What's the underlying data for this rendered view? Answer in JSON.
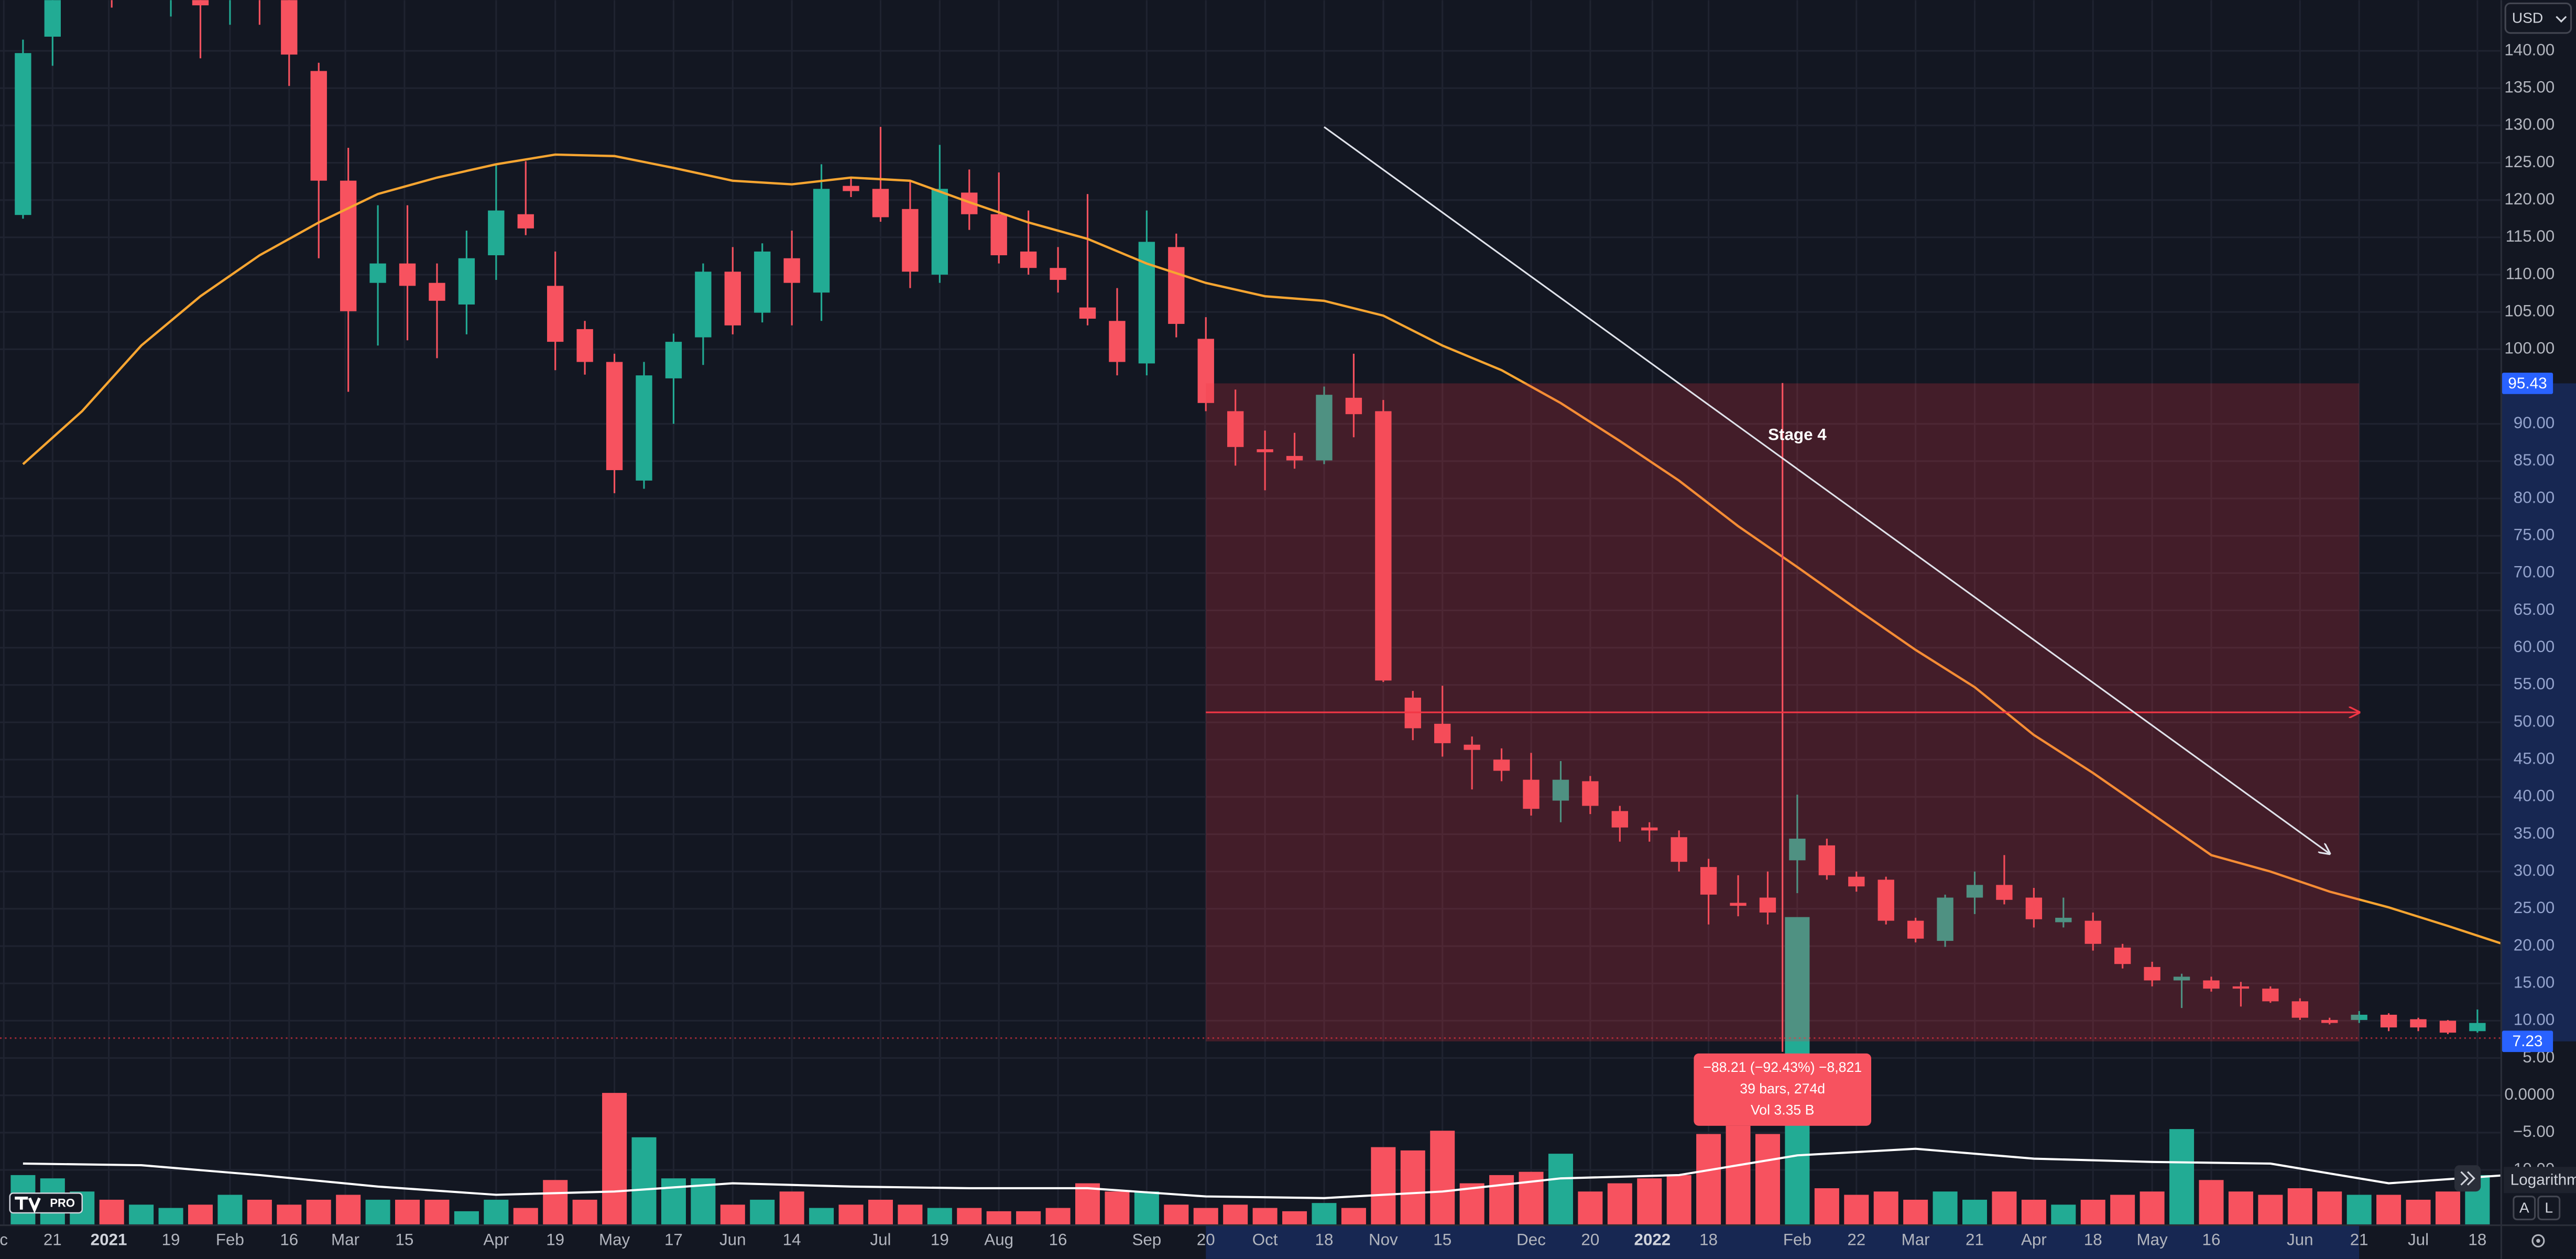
{
  "ui": {
    "currency": "USD",
    "log_button": "Logarithm",
    "auto_button": "A",
    "log_short": "L",
    "logo_badge": "PRO",
    "stage_label": "Stage 4",
    "measure": {
      "change": "−88.21 (−92.43%) −8,821",
      "bars": "39 bars, 274d",
      "volume": "Vol 3.35 B"
    }
  },
  "chart_data": {
    "type": "candlestick",
    "up_color": "#22ab94",
    "down_color": "#f7525f",
    "open": [
      118,
      141.9,
      149,
      150,
      148.5,
      148,
      150,
      147,
      149,
      148,
      137.3,
      122.6,
      108.9,
      111.5,
      108.9,
      106,
      112.6,
      118.1,
      108.5,
      102.7,
      98.3,
      82.4,
      96.1,
      101.6,
      110.4,
      104.9,
      112.2,
      107.6,
      121.9,
      121.5,
      118.8,
      110,
      121,
      118.1,
      113.1,
      110.9,
      105.6,
      103.8,
      98.1,
      113.7,
      101.4,
      91.7,
      86.6,
      85.7,
      85.1,
      93.5,
      91.7,
      53.3,
      49.8,
      47,
      45,
      42.3,
      39.5,
      42.1,
      38.1,
      35.9,
      34.6,
      30.6,
      25.8,
      26.5,
      31.5,
      33.5,
      29.3,
      28.9,
      23.4,
      20.7,
      26.5,
      28.2,
      26.5,
      23.2,
      23.4,
      19.8,
      17.2,
      15.4,
      15.4,
      14.6,
      14.3,
      12.6,
      10.1,
      10.1,
      10.8,
      10.2,
      10,
      8.6
    ],
    "high": [
      141.5,
      150,
      152,
      153,
      151,
      152,
      152,
      150,
      151,
      150,
      138.4,
      127,
      119.3,
      119.3,
      111.5,
      115.9,
      124.8,
      125.2,
      113.1,
      103.8,
      99.4,
      98.3,
      102.1,
      111.5,
      113.7,
      114.2,
      115.9,
      124.8,
      123,
      129.8,
      122.6,
      127.4,
      124.1,
      123.7,
      118.6,
      113.7,
      120.8,
      108.2,
      118.6,
      115.5,
      104.3,
      94.6,
      89.1,
      88.8,
      95,
      99.4,
      93.2,
      54.2,
      54.9,
      48.1,
      46.5,
      45.9,
      44.8,
      42.8,
      38.8,
      36.6,
      35.5,
      31.7,
      29.5,
      30,
      40.3,
      34.4,
      30,
      29.3,
      23.8,
      26.9,
      30,
      32.2,
      27.8,
      26.5,
      24.5,
      20.3,
      17.9,
      16.3,
      15.9,
      15.2,
      14.6,
      13,
      10.4,
      11.3,
      11,
      10.4,
      10.1,
      11.5
    ],
    "low": [
      117.5,
      138,
      147,
      145.8,
      147,
      144.6,
      139,
      143.5,
      143.5,
      135.3,
      112.2,
      94.3,
      100.5,
      101.2,
      98.8,
      102,
      109.3,
      115.3,
      97.2,
      96.6,
      80.7,
      81.3,
      90,
      97.9,
      102,
      103.6,
      103.2,
      103.8,
      120.4,
      117.1,
      108.2,
      108.9,
      116,
      111.5,
      110,
      107.6,
      103.2,
      96.5,
      96.5,
      101.6,
      91.7,
      84.4,
      81.1,
      84,
      84.6,
      88.2,
      55.4,
      47.6,
      45.4,
      41,
      42.1,
      37.5,
      36.6,
      37.7,
      34,
      34,
      30,
      22.9,
      24,
      22.9,
      27.1,
      28.9,
      27.3,
      22.9,
      20.5,
      19.9,
      24.3,
      25.6,
      22.5,
      22.5,
      19.4,
      17,
      14.6,
      11.7,
      13.9,
      11.9,
      12.4,
      10.1,
      9.5,
      9.7,
      8.6,
      8.6,
      8.2,
      8.4
    ],
    "close": [
      139.7,
      148,
      150,
      148.5,
      149,
      150,
      146.1,
      149,
      148,
      139.5,
      122.6,
      105.1,
      111.5,
      108.5,
      106.5,
      112.2,
      118.6,
      116.2,
      101,
      98.3,
      83.8,
      96.5,
      101,
      110.4,
      103.2,
      113.1,
      108.9,
      121.5,
      121.2,
      117.7,
      110.4,
      121.5,
      118.1,
      112.6,
      110.9,
      109.3,
      104.1,
      98.3,
      114.4,
      103.4,
      92.8,
      86.9,
      86.2,
      85.1,
      93.9,
      91.3,
      55.6,
      49.2,
      47.2,
      46.3,
      43.5,
      38.4,
      42.3,
      38.8,
      35.9,
      35.5,
      31.3,
      26.9,
      25.4,
      24.5,
      34.4,
      29.5,
      28,
      23.4,
      21,
      26.5,
      28.2,
      26.2,
      23.6,
      23.8,
      20.3,
      17.6,
      15.4,
      15.9,
      14.3,
      14.3,
      12.6,
      10.4,
      9.7,
      10.8,
      9.1,
      9.1,
      8.4,
      9.7
    ],
    "volume": [
      30,
      28,
      20,
      15,
      12,
      10,
      12,
      18,
      15,
      12,
      15,
      18,
      15,
      15,
      15,
      8,
      15,
      10,
      27,
      15,
      80,
      53,
      28,
      28,
      12,
      15,
      20,
      10,
      12,
      15,
      12,
      10,
      10,
      8,
      8,
      10,
      25,
      20,
      20,
      12,
      10,
      12,
      10,
      8,
      13,
      10,
      47,
      45,
      57,
      25,
      30,
      32,
      43,
      20,
      25,
      28,
      30,
      55,
      60,
      55,
      187,
      22,
      18,
      20,
      15,
      20,
      15,
      20,
      15,
      12,
      15,
      18,
      20,
      58,
      27,
      20,
      18,
      22,
      20,
      18,
      18,
      15,
      20,
      30
    ],
    "volume_lim": [
      0,
      250
    ],
    "moving_average": {
      "color": "#f7a531",
      "x": [
        0,
        2,
        4,
        6,
        8,
        10,
        12,
        14,
        16,
        18,
        20,
        22,
        24,
        26,
        28,
        30,
        32,
        34,
        36,
        38,
        40,
        42,
        44,
        46,
        48,
        50,
        52,
        54,
        56,
        58,
        60,
        62,
        64,
        66,
        68,
        70,
        72,
        74,
        76,
        78,
        80,
        82,
        84
      ],
      "values": [
        84.6,
        91.7,
        100.5,
        107.1,
        112.6,
        117,
        120.8,
        123,
        124.8,
        126.1,
        125.9,
        124.3,
        122.6,
        122.1,
        123,
        122.6,
        119.7,
        117,
        114.8,
        111.5,
        108.9,
        107.1,
        106.5,
        104.5,
        100.5,
        97.2,
        92.8,
        87.7,
        82.4,
        76.3,
        70.8,
        65.2,
        59.7,
        54.7,
        48.3,
        43.2,
        37.7,
        32.2,
        30,
        27.3,
        25.2,
        22.7,
        20.1
      ]
    },
    "volume_average": {
      "color": "#ffffff",
      "x": [
        0,
        4,
        8,
        12,
        16,
        20,
        24,
        28,
        32,
        36,
        40,
        44,
        48,
        52,
        56,
        60,
        64,
        68,
        72,
        76,
        80,
        84
      ],
      "values": [
        37,
        36,
        30,
        23,
        18,
        20,
        25,
        23,
        22,
        22,
        17,
        16,
        20,
        28,
        30,
        42,
        46,
        40,
        38,
        37,
        25,
        30
      ]
    },
    "range_box": {
      "top": 95.43,
      "bottom": 7.23,
      "start": 40,
      "end": 79,
      "color": "#f23645"
    },
    "trend_line": {
      "color": "#e0e3eb",
      "x": [
        44,
        78
      ],
      "values": [
        129.8,
        32.4
      ]
    },
    "xlim": [
      -0.7778,
      83.7778
    ],
    "ylim": [
      -17.3,
      146.8
    ],
    "grid": true,
    "yticks": [
      {
        "value": 140,
        "label": "140.00"
      },
      {
        "value": 135,
        "label": "135.00"
      },
      {
        "value": 130,
        "label": "130.00"
      },
      {
        "value": 125,
        "label": "125.00"
      },
      {
        "value": 120,
        "label": "120.00"
      },
      {
        "value": 115,
        "label": "115.00"
      },
      {
        "value": 110,
        "label": "110.00"
      },
      {
        "value": 105,
        "label": "105.00"
      },
      {
        "value": 100,
        "label": "100.00"
      },
      {
        "value": 90,
        "label": "90.00"
      },
      {
        "value": 85,
        "label": "85.00"
      },
      {
        "value": 80,
        "label": "80.00"
      },
      {
        "value": 75,
        "label": "75.00"
      },
      {
        "value": 70,
        "label": "70.00"
      },
      {
        "value": 65,
        "label": "65.00"
      },
      {
        "value": 60,
        "label": "60.00"
      },
      {
        "value": 55,
        "label": "55.00"
      },
      {
        "value": 50,
        "label": "50.00"
      },
      {
        "value": 45,
        "label": "45.00"
      },
      {
        "value": 40,
        "label": "40.00"
      },
      {
        "value": 35,
        "label": "35.00"
      },
      {
        "value": 30,
        "label": "30.00"
      },
      {
        "value": 25,
        "label": "25.00"
      },
      {
        "value": 20,
        "label": "20.00"
      },
      {
        "value": 15,
        "label": "15.00"
      },
      {
        "value": 10,
        "label": "10.00"
      },
      {
        "value": 5,
        "label": "5.00"
      },
      {
        "value": 0,
        "label": "0.0000"
      },
      {
        "value": -5,
        "label": "−5.00"
      },
      {
        "value": -10,
        "label": "−10.00"
      }
    ],
    "xticks": [
      {
        "value": -0.65,
        "label": "c"
      },
      {
        "value": 1,
        "label": "21"
      },
      {
        "value": 2.9,
        "label": "2021"
      },
      {
        "value": 5,
        "label": "19"
      },
      {
        "value": 7,
        "label": "Feb"
      },
      {
        "value": 9,
        "label": "16"
      },
      {
        "value": 10.9,
        "label": "Mar"
      },
      {
        "value": 12.9,
        "label": "15"
      },
      {
        "value": 16,
        "label": "Apr"
      },
      {
        "value": 18,
        "label": "19"
      },
      {
        "value": 20,
        "label": "May"
      },
      {
        "value": 22,
        "label": "17"
      },
      {
        "value": 24,
        "label": "Jun"
      },
      {
        "value": 26,
        "label": "14"
      },
      {
        "value": 29,
        "label": "Jul"
      },
      {
        "value": 31,
        "label": "19"
      },
      {
        "value": 33,
        "label": "Aug"
      },
      {
        "value": 35,
        "label": "16"
      },
      {
        "value": 38,
        "label": "Sep"
      },
      {
        "value": 40,
        "label": "20"
      },
      {
        "value": 42,
        "label": "Oct"
      },
      {
        "value": 44,
        "label": "18"
      },
      {
        "value": 46,
        "label": "Nov"
      },
      {
        "value": 48,
        "label": "15"
      },
      {
        "value": 51,
        "label": "Dec"
      },
      {
        "value": 53,
        "label": "20"
      },
      {
        "value": 55.1,
        "label": "2022"
      },
      {
        "value": 57,
        "label": "18"
      },
      {
        "value": 60,
        "label": "Feb"
      },
      {
        "value": 62,
        "label": "22"
      },
      {
        "value": 64,
        "label": "Mar"
      },
      {
        "value": 66,
        "label": "21"
      },
      {
        "value": 68,
        "label": "Apr"
      },
      {
        "value": 70,
        "label": "18"
      },
      {
        "value": 72,
        "label": "May"
      },
      {
        "value": 74,
        "label": "16"
      },
      {
        "value": 77,
        "label": "Jun"
      },
      {
        "value": 79,
        "label": "21"
      },
      {
        "value": 81,
        "label": "Jul"
      },
      {
        "value": 83,
        "label": "18"
      }
    ]
  }
}
